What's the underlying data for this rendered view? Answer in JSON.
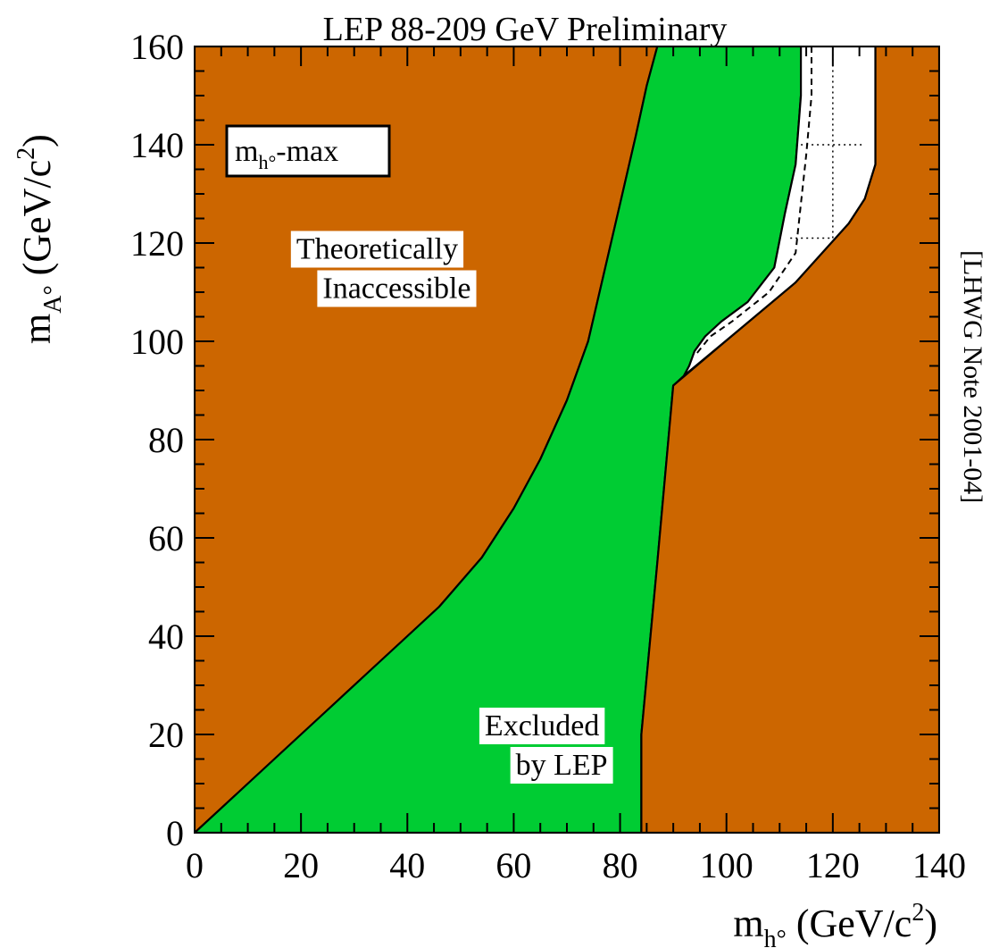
{
  "chart_data": {
    "type": "area",
    "title": "LEP 88-209 GeV Preliminary",
    "side_note": "[LHWG Note 2001-04]",
    "scenario": {
      "main": "m",
      "sub": "h°",
      "suffix": "-max"
    },
    "xlabel": {
      "main": "m",
      "sub": "h°",
      "units": " (GeV/c",
      "sup": "2",
      "close": ")"
    },
    "ylabel": {
      "main": "m",
      "sub": "A°",
      "units": " (GeV/c",
      "sup": "2",
      "close": ")"
    },
    "xlim": [
      0,
      140
    ],
    "ylim": [
      0,
      160
    ],
    "x_ticks": [
      0,
      20,
      40,
      60,
      80,
      100,
      120,
      140
    ],
    "y_ticks": [
      0,
      20,
      40,
      60,
      80,
      100,
      120,
      140,
      160
    ],
    "x_tick_labels": [
      "0",
      "20",
      "40",
      "60",
      "80",
      "100",
      "120",
      "140"
    ],
    "y_tick_labels": [
      "0",
      "20",
      "40",
      "60",
      "80",
      "100",
      "120",
      "140",
      "160"
    ],
    "colors": {
      "inaccessible": "#cc6600",
      "excluded": "#00cc33",
      "allowed": "#ffffff"
    },
    "regions": [
      {
        "id": "theory-left",
        "label_lines": [
          "Theoretically",
          "Inaccessible"
        ],
        "label_at": [
          36,
          115
        ],
        "color": "#cc6600",
        "polygon": [
          [
            0,
            0
          ],
          [
            8,
            8
          ],
          [
            16,
            16
          ],
          [
            24,
            24
          ],
          [
            32,
            32
          ],
          [
            40,
            40
          ],
          [
            46,
            46
          ],
          [
            54,
            56
          ],
          [
            60,
            66
          ],
          [
            65,
            76
          ],
          [
            70,
            88
          ],
          [
            74,
            100
          ],
          [
            77,
            114
          ],
          [
            80,
            128
          ],
          [
            83,
            142
          ],
          [
            85,
            152
          ],
          [
            87,
            160
          ],
          [
            0,
            160
          ]
        ]
      },
      {
        "id": "excluded",
        "label_lines": [
          "Excluded",
          "by LEP"
        ],
        "label_at": [
          67,
          18
        ],
        "color": "#00cc33",
        "polygon": [
          [
            0,
            0
          ],
          [
            8,
            8
          ],
          [
            16,
            16
          ],
          [
            24,
            24
          ],
          [
            32,
            32
          ],
          [
            40,
            40
          ],
          [
            46,
            46
          ],
          [
            54,
            56
          ],
          [
            60,
            66
          ],
          [
            65,
            76
          ],
          [
            70,
            88
          ],
          [
            74,
            100
          ],
          [
            77,
            114
          ],
          [
            80,
            128
          ],
          [
            83,
            142
          ],
          [
            85,
            152
          ],
          [
            87,
            160
          ],
          [
            114,
            160
          ],
          [
            114,
            150
          ],
          [
            113,
            136
          ],
          [
            111,
            126
          ],
          [
            109,
            115
          ],
          [
            104,
            108
          ],
          [
            99,
            104
          ],
          [
            96,
            101
          ],
          [
            94,
            98
          ],
          [
            93,
            95
          ],
          [
            92,
            93
          ],
          [
            90,
            91
          ],
          [
            87,
            55
          ],
          [
            84,
            20
          ],
          [
            84,
            0
          ]
        ]
      },
      {
        "id": "theory-right",
        "label_lines": [],
        "color": "#cc6600",
        "polygon": [
          [
            84,
            0
          ],
          [
            84,
            20
          ],
          [
            87,
            55
          ],
          [
            90,
            91
          ],
          [
            102,
            102
          ],
          [
            113,
            112
          ],
          [
            123,
            124
          ],
          [
            126,
            129
          ],
          [
            128,
            136
          ],
          [
            128,
            160
          ],
          [
            140,
            160
          ],
          [
            140,
            0
          ]
        ]
      },
      {
        "id": "allowed",
        "label_lines": [],
        "color": "#ffffff",
        "polygon": [
          [
            114,
            160
          ],
          [
            114,
            150
          ],
          [
            113,
            136
          ],
          [
            111,
            126
          ],
          [
            109,
            115
          ],
          [
            104,
            108
          ],
          [
            99,
            104
          ],
          [
            96,
            101
          ],
          [
            94,
            98
          ],
          [
            93,
            95
          ],
          [
            92,
            93
          ],
          [
            102,
            102
          ],
          [
            113,
            112
          ],
          [
            123,
            124
          ],
          [
            126,
            129
          ],
          [
            128,
            136
          ],
          [
            128,
            160
          ]
        ]
      }
    ],
    "expected_limit": [
      [
        116,
        160
      ],
      [
        116,
        150
      ],
      [
        115,
        138
      ],
      [
        114,
        128
      ],
      [
        113,
        118
      ],
      [
        108,
        110
      ],
      [
        101,
        104
      ],
      [
        97,
        101
      ],
      [
        94,
        97
      ]
    ],
    "reference_grid": {
      "vertical": [
        {
          "x": 120,
          "y_from": 121,
          "y_to": 160
        }
      ],
      "horizontal": [
        {
          "y": 140,
          "x_from": 114,
          "x_to": 126
        },
        {
          "y": 121,
          "x_from": 112,
          "x_to": 120
        }
      ]
    }
  }
}
